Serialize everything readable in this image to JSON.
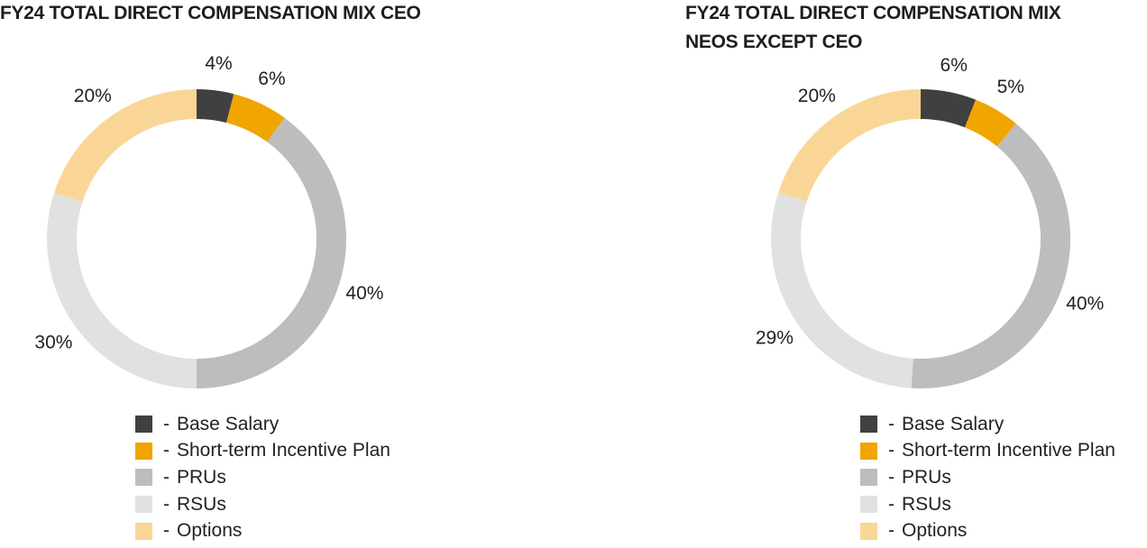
{
  "chart_data": [
    {
      "type": "pie",
      "variant": "donut",
      "title_lines": [
        "FY24 TOTAL DIRECT COMPENSATION MIX CEO"
      ],
      "categories": [
        "Base Salary",
        "Short-term Incentive Plan",
        "PRUs",
        "RSUs",
        "Options"
      ],
      "values": [
        4,
        6,
        40,
        30,
        20
      ],
      "labels": [
        "4%",
        "6%",
        "40%",
        "30%",
        "20%"
      ],
      "legend_position": "bottom"
    },
    {
      "type": "pie",
      "variant": "donut",
      "title_lines": [
        "FY24 TOTAL DIRECT COMPENSATION MIX",
        "NEOS EXCEPT CEO"
      ],
      "categories": [
        "Base Salary",
        "Short-term Incentive Plan",
        "PRUs",
        "RSUs",
        "Options"
      ],
      "values": [
        6,
        5,
        40,
        29,
        20
      ],
      "labels": [
        "6%",
        "5%",
        "40%",
        "29%",
        "20%"
      ],
      "legend_position": "bottom"
    }
  ],
  "legend_separator": "-",
  "colors": [
    "#404040",
    "#f0a500",
    "#bdbdbd",
    "#e1e1e1",
    "#fad696"
  ]
}
